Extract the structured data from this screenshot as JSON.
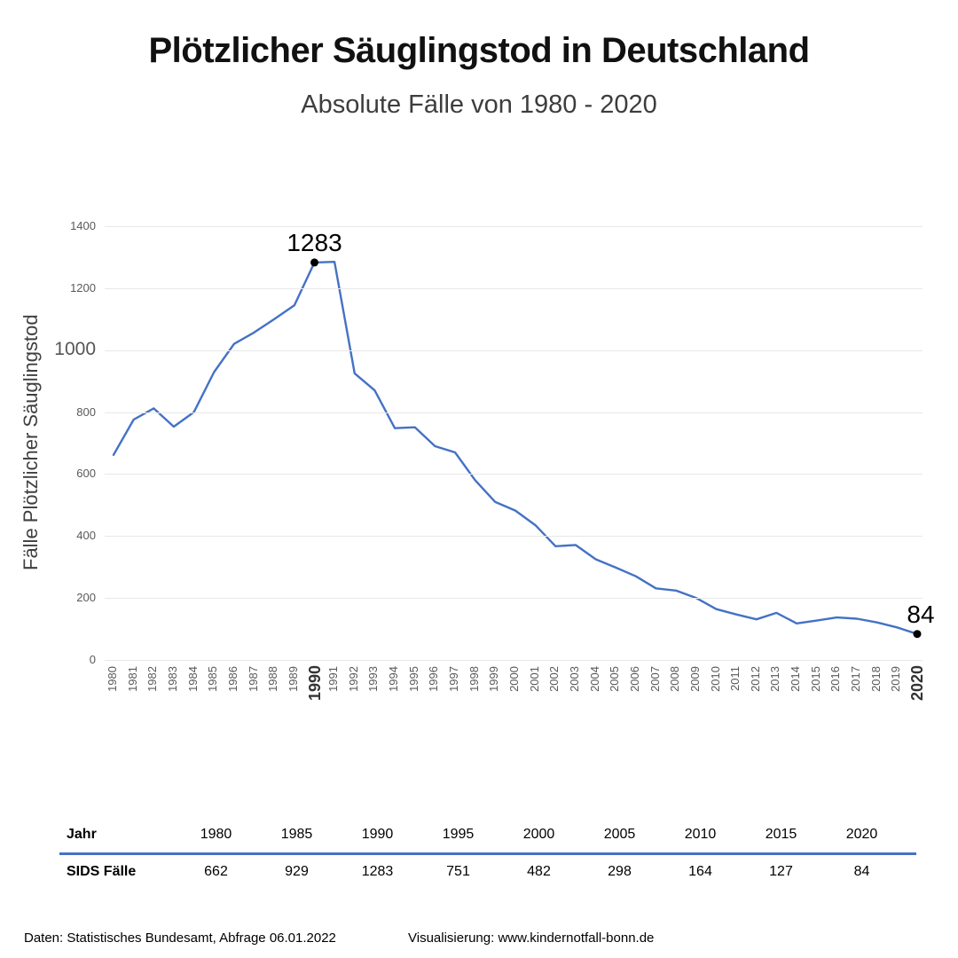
{
  "header": {
    "title": "Plötzlicher Säuglingstod in Deutschland",
    "subtitle": "Absolute Fälle von 1980 - 2020"
  },
  "chart_data": {
    "type": "line",
    "title": "Plötzlicher Säuglingstod in Deutschland",
    "subtitle": "Absolute Fälle von 1980 - 2020",
    "ylabel": "Fälle Plötzlicher Säuglingstod",
    "xlabel": "",
    "ylim": [
      0,
      1400
    ],
    "yticks": [
      0,
      200,
      400,
      600,
      800,
      1000,
      1200,
      1400
    ],
    "big_ytick": 1000,
    "grid": "horizontal",
    "legend": "none",
    "line_color": "#4472c4",
    "marker_color": "#000000",
    "x": [
      1980,
      1981,
      1982,
      1983,
      1984,
      1985,
      1986,
      1987,
      1988,
      1989,
      1990,
      1991,
      1992,
      1993,
      1994,
      1995,
      1996,
      1997,
      1998,
      1999,
      2000,
      2001,
      2002,
      2003,
      2004,
      2005,
      2006,
      2007,
      2008,
      2009,
      2010,
      2011,
      2012,
      2013,
      2014,
      2015,
      2016,
      2017,
      2018,
      2019,
      2020
    ],
    "emphasized_xticks": [
      1990,
      2020
    ],
    "series": [
      {
        "name": "SIDS Fälle",
        "values": [
          662,
          776,
          812,
          753,
          800,
          929,
          1020,
          1057,
          1100,
          1145,
          1283,
          1285,
          925,
          870,
          748,
          751,
          690,
          670,
          580,
          510,
          482,
          435,
          367,
          371,
          325,
          298,
          270,
          231,
          224,
          200,
          164,
          147,
          131,
          152,
          118,
          127,
          137,
          133,
          121,
          105,
          84
        ]
      }
    ],
    "annotations": [
      {
        "year": 1990,
        "value": 1283,
        "label": "1283"
      },
      {
        "year": 2020,
        "value": 84,
        "label": "84"
      }
    ]
  },
  "table": {
    "row1_label": "Jahr",
    "row2_label": "SIDS Fälle",
    "years": [
      "1980",
      "1985",
      "1990",
      "1995",
      "2000",
      "2005",
      "2010",
      "2015",
      "2020"
    ],
    "values": [
      "662",
      "929",
      "1283",
      "751",
      "482",
      "298",
      "164",
      "127",
      "84"
    ]
  },
  "footer": {
    "source": "Daten: Statistisches Bundesamt, Abfrage 06.01.2022",
    "visualization": "Visualisierung: www.kindernotfall-bonn.de"
  },
  "colors": {
    "accent_blue": "#4472c4",
    "gridline": "#e8e8e8",
    "tick_gray": "#595959",
    "subtitle_gray": "#3d3d3d"
  }
}
